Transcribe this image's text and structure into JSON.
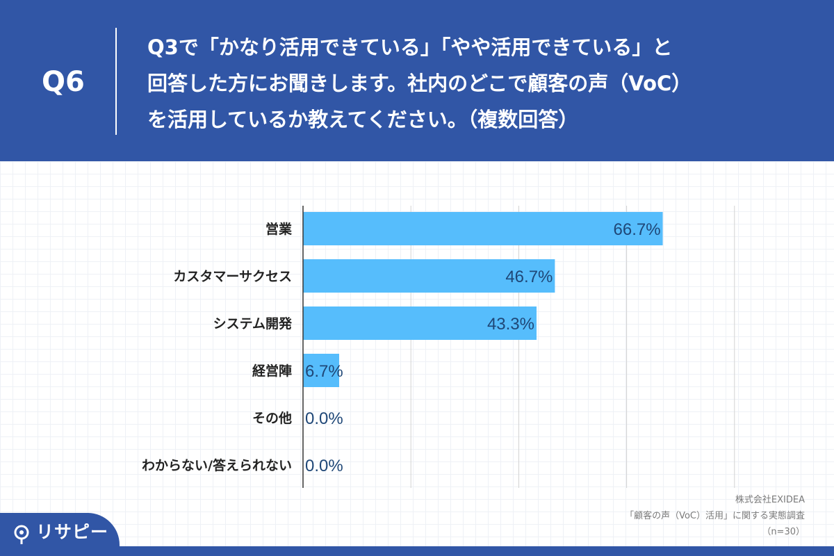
{
  "header": {
    "question_number": "Q6",
    "question_text": "Q3で「かなり活用できている」「やや活用できている」と\n回答した方にお聞きします。社内のどこで顧客の声（VoC）\nを活用しているか教えてください。（複数回答）"
  },
  "chart_data": {
    "type": "bar",
    "orientation": "horizontal",
    "categories": [
      "営業",
      "カスタマーサクセス",
      "システム開発",
      "経営陣",
      "その他",
      "わからない/答えられない"
    ],
    "values": [
      66.7,
      46.7,
      43.3,
      6.7,
      0.0,
      0.0
    ],
    "value_labels": [
      "66.7%",
      "46.7%",
      "43.3%",
      "6.7%",
      "0.0%",
      "0.0%"
    ],
    "xlim": [
      0,
      100
    ],
    "grid": true,
    "bar_color": "#56bdfc",
    "label_color": "#1f4777"
  },
  "source": {
    "company": "株式会社EXIDEA",
    "survey": "「顧客の声（VoC）活用」に関する実態調査",
    "sample": "（n=30）"
  },
  "brand": {
    "name": "リサピー",
    "icon": "pin-icon"
  },
  "colors": {
    "background": "#3156a6",
    "panel": "#ffffff"
  }
}
